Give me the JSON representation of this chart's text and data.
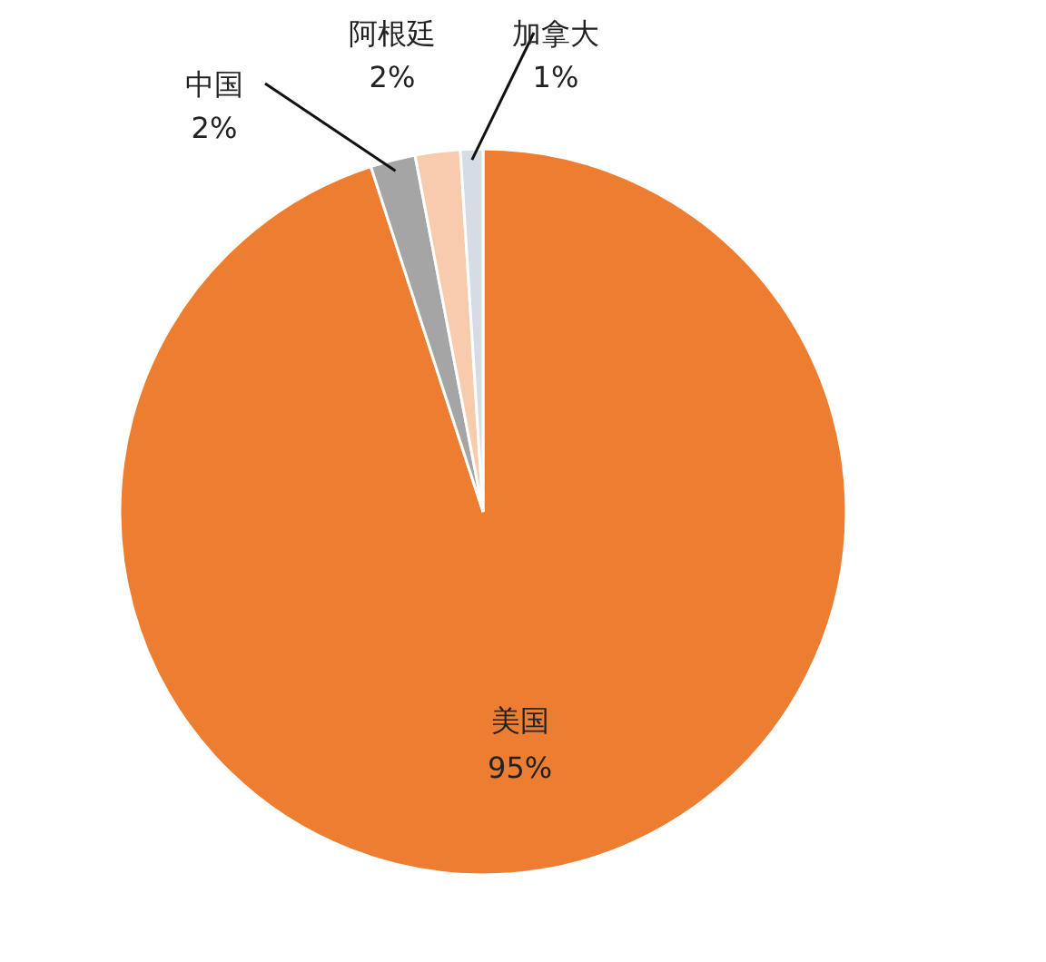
{
  "chart_data": {
    "type": "pie",
    "categories": [
      "美国",
      "中国",
      "阿根廷",
      "加拿大"
    ],
    "values": [
      95,
      2,
      2,
      1
    ],
    "colors": [
      "#ed7d31",
      "#a5a5a5",
      "#f8cbad",
      "#d6dce5"
    ],
    "value_labels": [
      "95%",
      "2%",
      "2%",
      "1%"
    ]
  }
}
